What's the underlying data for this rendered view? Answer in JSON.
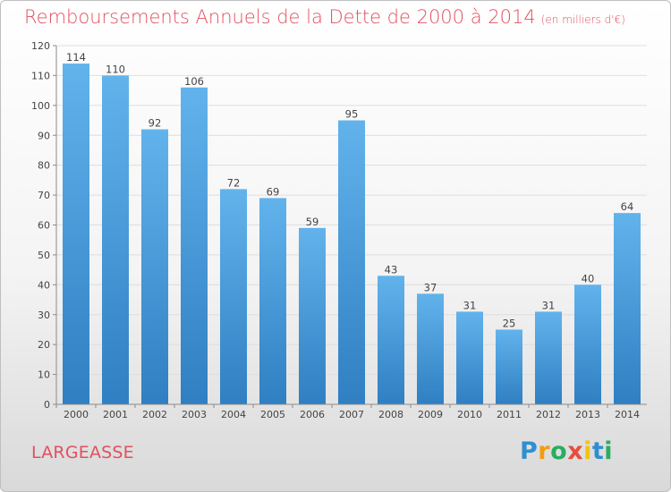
{
  "chart_data": {
    "type": "bar",
    "title": "Remboursements Annuels de la Dette de 2000 à 2014",
    "unit": "(en milliers d'€)",
    "categories": [
      "2000",
      "2001",
      "2002",
      "2003",
      "2004",
      "2005",
      "2006",
      "2007",
      "2008",
      "2009",
      "2010",
      "2011",
      "2012",
      "2013",
      "2014"
    ],
    "values": [
      114,
      110,
      92,
      106,
      72,
      69,
      59,
      95,
      43,
      37,
      31,
      25,
      31,
      40,
      64
    ],
    "ylim": [
      0,
      120
    ],
    "yticks": [
      0,
      10,
      20,
      30,
      40,
      50,
      60,
      70,
      80,
      90,
      100,
      110,
      120
    ],
    "grid": true,
    "bar_color": "#3d8ed4"
  },
  "commune": "LARGEASSE",
  "logo": {
    "letters": [
      "P",
      "r",
      "o",
      "x",
      "i",
      "t",
      "i"
    ],
    "colors": [
      "#2e8fd0",
      "#f39c12",
      "#27ae60",
      "#e74c3c",
      "#f1c40f",
      "#2e8fd0",
      "#27ae60"
    ]
  }
}
